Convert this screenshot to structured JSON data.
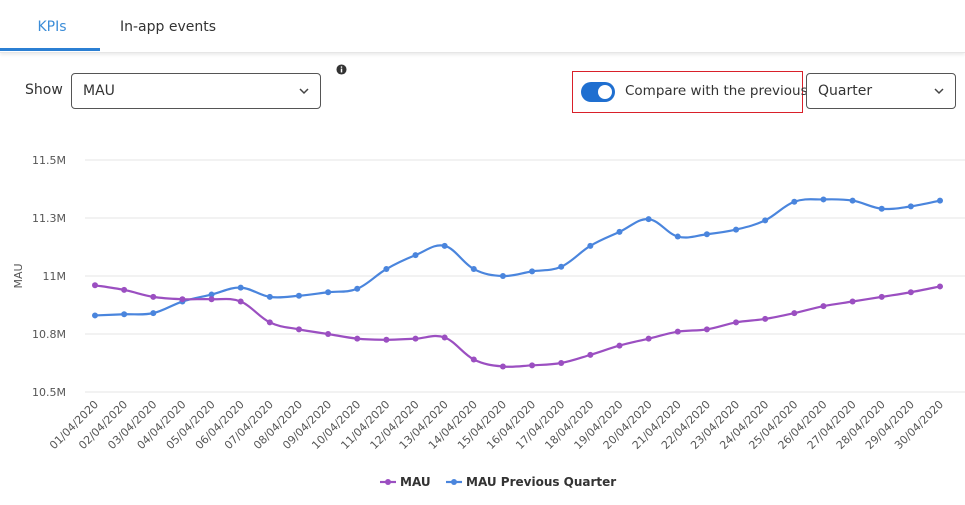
{
  "tabs": [
    {
      "label": "KPIs",
      "active": true
    },
    {
      "label": "In-app events",
      "active": false
    }
  ],
  "controls": {
    "show_label": "Show",
    "metric_select": "MAU",
    "compare_toggle_on": true,
    "compare_label": "Compare with the previous",
    "period_select": "Quarter"
  },
  "colors": {
    "accent": "#2b7fd3",
    "mau": "#9b4fc1",
    "mau_prev": "#4a85dd",
    "highlight": "#d9202a"
  },
  "chart_data": {
    "type": "line",
    "title": "",
    "xlabel": "",
    "ylabel": "MAU",
    "ylim": [
      10.5,
      11.5
    ],
    "yticks": [
      10.5,
      10.75,
      11.0,
      11.25,
      11.5
    ],
    "ytick_labels": [
      "10.5M",
      "10.8M",
      "11M",
      "11.3M",
      "11.5M"
    ],
    "grid": true,
    "legend": "bottom",
    "x": [
      "01/04/2020",
      "02/04/2020",
      "03/04/2020",
      "04/04/2020",
      "05/04/2020",
      "06/04/2020",
      "07/04/2020",
      "08/04/2020",
      "09/04/2020",
      "10/04/2020",
      "11/04/2020",
      "12/04/2020",
      "13/04/2020",
      "14/04/2020",
      "15/04/2020",
      "16/04/2020",
      "17/04/2020",
      "18/04/2020",
      "19/04/2020",
      "20/04/2020",
      "21/04/2020",
      "22/04/2020",
      "23/04/2020",
      "24/04/2020",
      "25/04/2020",
      "26/04/2020",
      "27/04/2020",
      "28/04/2020",
      "29/04/2020",
      "30/04/2020"
    ],
    "series": [
      {
        "name": "MAU",
        "color": "#9b4fc1",
        "values": [
          10.96,
          10.94,
          10.91,
          10.9,
          10.9,
          10.89,
          10.8,
          10.77,
          10.75,
          10.73,
          10.725,
          10.73,
          10.735,
          10.64,
          10.61,
          10.615,
          10.625,
          10.66,
          10.7,
          10.73,
          10.76,
          10.77,
          10.8,
          10.815,
          10.84,
          10.87,
          10.89,
          10.91,
          10.93,
          10.955
        ]
      },
      {
        "name": "MAU Previous Quarter",
        "color": "#4a85dd",
        "values": [
          10.83,
          10.835,
          10.84,
          10.89,
          10.92,
          10.95,
          10.91,
          10.915,
          10.93,
          10.945,
          11.03,
          11.09,
          11.13,
          11.03,
          11.0,
          11.02,
          11.04,
          11.13,
          11.19,
          11.245,
          11.17,
          11.18,
          11.2,
          11.24,
          11.32,
          11.33,
          11.325,
          11.29,
          11.3,
          11.325
        ]
      }
    ]
  }
}
